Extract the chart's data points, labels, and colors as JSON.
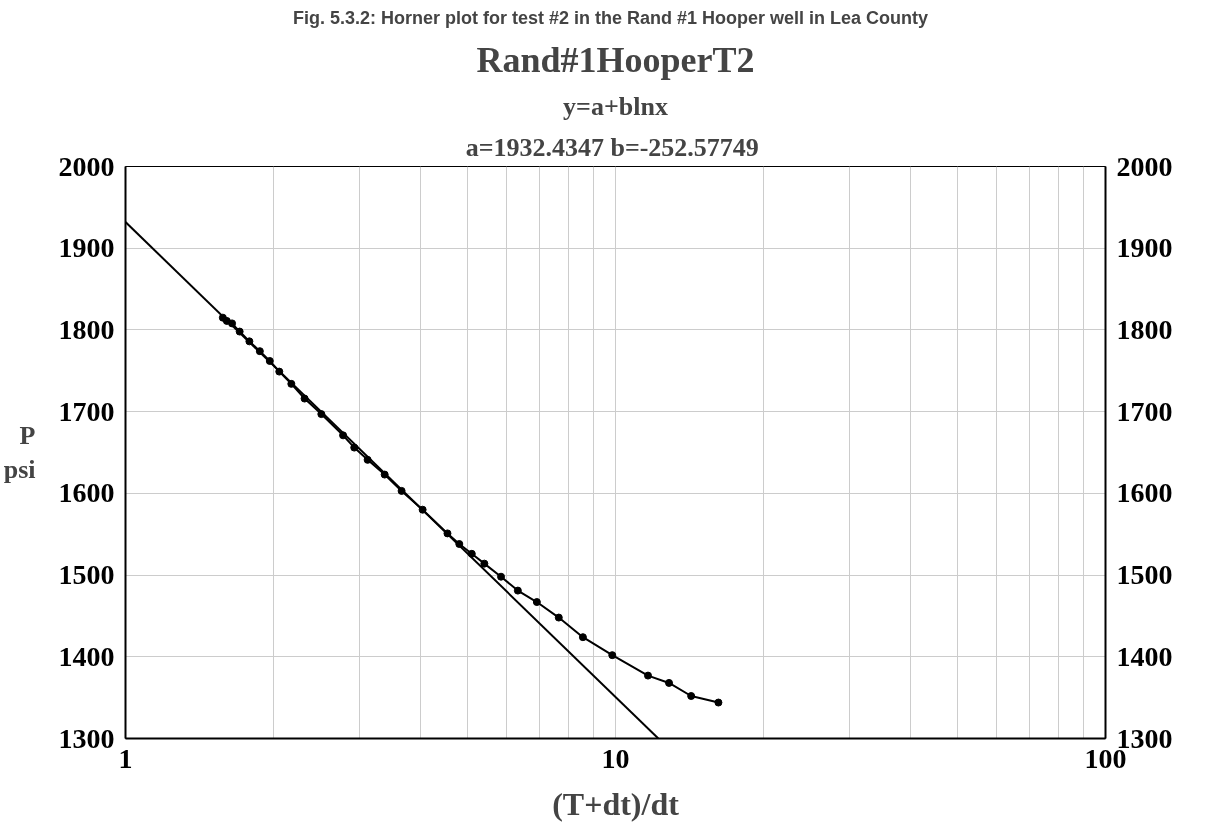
{
  "chart_data": {
    "type": "line",
    "title": "Fig. 5.3.2:   Horner plot for test #2 in the Rand #1 Hooper well in Lea County",
    "subtitle": "Rand#1HooperT2",
    "annotations": [
      "y=a+blnx",
      "a=1932.4347  b=-252.57749"
    ],
    "xlabel": "(T+dt)/dt",
    "ylabel": "P psi",
    "log": "x",
    "grid": true,
    "marker": "circle",
    "line_style": "solid",
    "xlim": [
      1,
      100
    ],
    "xticks": [
      1,
      {
        "value": 2,
        "label": null
      },
      {
        "value": 3,
        "label": null
      },
      {
        "value": 4,
        "label": null
      },
      {
        "value": 5,
        "label": null
      },
      {
        "value": 6,
        "label": null
      },
      {
        "value": 7,
        "label": null
      },
      {
        "value": 8,
        "label": null
      },
      {
        "value": 9,
        "label": null
      },
      10,
      {
        "value": 20,
        "label": null
      },
      {
        "value": 30,
        "label": null
      },
      {
        "value": 40,
        "label": null
      },
      {
        "value": 50,
        "label": null
      },
      {
        "value": 60,
        "label": null
      },
      {
        "value": 70,
        "label": null
      },
      {
        "value": 80,
        "label": null
      },
      {
        "value": 90,
        "label": null
      },
      100
    ],
    "ylim": [
      1300,
      2000
    ],
    "yticks": [
      1300,
      1400,
      1500,
      1600,
      1700,
      1800,
      1900,
      2000
    ],
    "y2lim": [
      1300,
      2000
    ],
    "y2ticks": [
      1300,
      1400,
      1500,
      1600,
      1700,
      1800,
      1900,
      2000
    ],
    "series": [
      {
        "color": "#000000",
        "x": [
          1.58,
          1.61,
          1.65,
          1.71,
          1.79,
          1.88,
          1.97,
          2.06,
          2.18,
          2.32,
          2.51,
          2.78,
          2.93,
          3.12,
          3.38,
          3.66,
          4.04,
          4.54,
          4.8,
          5.09,
          5.4,
          5.84,
          6.32,
          6.91,
          7.66,
          8.58,
          9.85,
          11.65,
          12.86,
          14.27,
          16.22
        ],
        "values": [
          1815,
          1811,
          1808,
          1798,
          1786,
          1774,
          1762,
          1749,
          1734,
          1716,
          1697,
          1671,
          1656,
          1641,
          1623,
          1603,
          1580,
          1551,
          1538,
          1526,
          1514,
          1498,
          1481,
          1467,
          1448,
          1424,
          1402,
          1377,
          1368,
          1352,
          1344
        ]
      },
      {
        "color": "#000000",
        "marker": "none",
        "x": [
          1,
          12.23
        ],
        "values": [
          1932,
          1300
        ]
      }
    ]
  }
}
